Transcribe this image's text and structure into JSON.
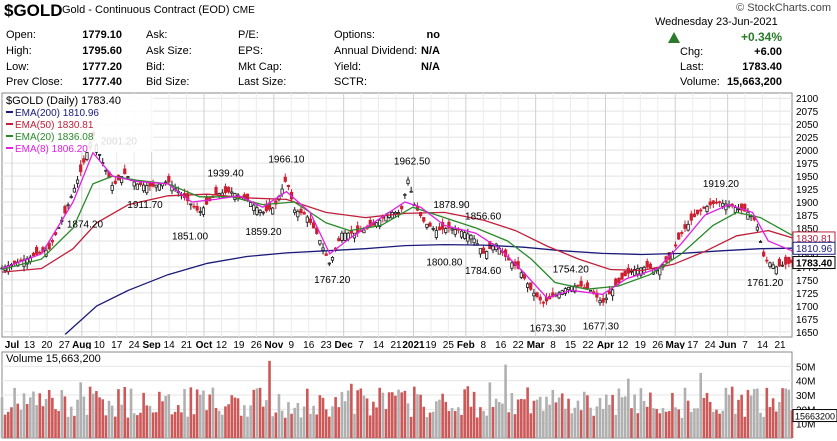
{
  "header": {
    "symbol": "$GOLD",
    "name": "Gold - Continuous Contract (EOD)",
    "exchange": "CME",
    "watermark": "© StockCharts.com",
    "date_text": "Wednesday  23-Jun-2021",
    "change_pct": "+0.34%",
    "chg_label": "Chg:",
    "chg_value": "+6.00",
    "last_label": "Last:",
    "last_value": "1783.40",
    "volume_label": "Volume:",
    "volume_value": "15,663,200",
    "col1": [
      {
        "label": "Open:",
        "value": "1779.10"
      },
      {
        "label": "High:",
        "value": "1795.60"
      },
      {
        "label": "Low:",
        "value": "1777.20"
      },
      {
        "label": "Prev Close:",
        "value": "1777.40"
      }
    ],
    "col2": [
      "Ask:",
      "Ask Size:",
      "Bid:",
      "Bid Size:"
    ],
    "col3": [
      "P/E:",
      "EPS:",
      "Mkt Cap:",
      "Last Size:"
    ],
    "col4": [
      {
        "label": "Options:",
        "value": "no"
      },
      {
        "label": "Annual Dividend:",
        "value": "N/A"
      },
      {
        "label": "Yield:",
        "value": "N/A"
      },
      {
        "label": "SCTR:",
        "value": ""
      }
    ]
  },
  "chart_data": [
    {
      "type": "candlestick",
      "title": "$GOLD (Daily) 1783.40",
      "legend": [
        {
          "name": "EMA(200) 1810.96",
          "color": "#1a1a7a"
        },
        {
          "name": "EMA(50) 1830.81",
          "color": "#c0203a"
        },
        {
          "name": "EMA(20) 1836.08",
          "color": "#2a8a2a"
        },
        {
          "name": "EMA(8) 1806.20",
          "color": "#e020e0"
        }
      ],
      "price_axis": [
        "2100",
        "2075",
        "2050",
        "2025",
        "2000",
        "1975",
        "1950",
        "1925",
        "1900",
        "1875",
        "1850",
        "1825",
        "1800",
        "1775",
        "1750",
        "1725",
        "1700",
        "1675",
        "1650"
      ],
      "ylim": [
        1640,
        2110
      ],
      "x_ticks": [
        "Jul",
        "13",
        "20",
        "27",
        "Aug",
        "10",
        "17",
        "24",
        "Sep",
        "14",
        "21",
        "Oct",
        "12",
        "19",
        "26",
        "Nov",
        "9",
        "16",
        "23",
        "Dec",
        "7",
        "14",
        "21",
        "2021",
        "19",
        "25",
        "Feb",
        "8",
        "16",
        "22",
        "Mar",
        "8",
        "15",
        "22",
        "Apr",
        "12",
        "19",
        "26",
        "May",
        "17",
        "24",
        "Jun",
        "7",
        "14",
        "21"
      ],
      "annotations": [
        {
          "text": "2001.20",
          "x": 0.148,
          "y": 2001.2
        },
        {
          "text": "1874.20",
          "x": 0.105,
          "y": 1874.2
        },
        {
          "text": "1911.70",
          "x": 0.181,
          "y": 1911.7
        },
        {
          "text": "1851.00",
          "x": 0.238,
          "y": 1851.0
        },
        {
          "text": "1939.40",
          "x": 0.283,
          "y": 1939.4
        },
        {
          "text": "1966.10",
          "x": 0.36,
          "y": 1966.1
        },
        {
          "text": "1859.20",
          "x": 0.331,
          "y": 1859.2
        },
        {
          "text": "1767.20",
          "x": 0.418,
          "y": 1767.2
        },
        {
          "text": "1962.50",
          "x": 0.519,
          "y": 1962.5
        },
        {
          "text": "1878.90",
          "x": 0.569,
          "y": 1878.9
        },
        {
          "text": "1856.60",
          "x": 0.609,
          "y": 1856.6
        },
        {
          "text": "1800.80",
          "x": 0.56,
          "y": 1800.8
        },
        {
          "text": "1784.60",
          "x": 0.609,
          "y": 1784.6
        },
        {
          "text": "1754.20",
          "x": 0.72,
          "y": 1754.2
        },
        {
          "text": "1673.30",
          "x": 0.691,
          "y": 1673.3
        },
        {
          "text": "1677.30",
          "x": 0.758,
          "y": 1677.3
        },
        {
          "text": "1919.20",
          "x": 0.91,
          "y": 1919.2
        },
        {
          "text": "1761.20",
          "x": 0.966,
          "y": 1761.2
        }
      ],
      "right_labels": [
        {
          "text": "1830.81",
          "color": "#c0203a",
          "y": 1830.81
        },
        {
          "text": "1810.96",
          "color": "#1a1a7a",
          "y": 1810.96
        },
        {
          "text": "1783.40",
          "color": "#000000",
          "y": 1783.4
        }
      ],
      "close_path": [
        [
          0,
          1773
        ],
        [
          0.03,
          1790
        ],
        [
          0.06,
          1810
        ],
        [
          0.08,
          1880
        ],
        [
          0.1,
          1960
        ],
        [
          0.115,
          2030
        ],
        [
          0.125,
          1985
        ],
        [
          0.14,
          1930
        ],
        [
          0.155,
          1955
        ],
        [
          0.17,
          1935
        ],
        [
          0.19,
          1930
        ],
        [
          0.21,
          1940
        ],
        [
          0.23,
          1910
        ],
        [
          0.25,
          1880
        ],
        [
          0.27,
          1915
        ],
        [
          0.29,
          1920
        ],
        [
          0.31,
          1905
        ],
        [
          0.33,
          1880
        ],
        [
          0.345,
          1890
        ],
        [
          0.36,
          1945
        ],
        [
          0.37,
          1885
        ],
        [
          0.385,
          1875
        ],
        [
          0.4,
          1835
        ],
        [
          0.415,
          1780
        ],
        [
          0.43,
          1840
        ],
        [
          0.45,
          1840
        ],
        [
          0.47,
          1855
        ],
        [
          0.49,
          1880
        ],
        [
          0.505,
          1880
        ],
        [
          0.515,
          1950
        ],
        [
          0.52,
          1900
        ],
        [
          0.535,
          1860
        ],
        [
          0.55,
          1845
        ],
        [
          0.565,
          1850
        ],
        [
          0.58,
          1845
        ],
        [
          0.595,
          1835
        ],
        [
          0.61,
          1800
        ],
        [
          0.625,
          1820
        ],
        [
          0.64,
          1790
        ],
        [
          0.655,
          1770
        ],
        [
          0.67,
          1730
        ],
        [
          0.685,
          1705
        ],
        [
          0.7,
          1720
        ],
        [
          0.715,
          1735
        ],
        [
          0.73,
          1740
        ],
        [
          0.745,
          1730
        ],
        [
          0.76,
          1705
        ],
        [
          0.775,
          1735
        ],
        [
          0.79,
          1760
        ],
        [
          0.8,
          1770
        ],
        [
          0.815,
          1775
        ],
        [
          0.83,
          1770
        ],
        [
          0.845,
          1790
        ],
        [
          0.86,
          1840
        ],
        [
          0.875,
          1870
        ],
        [
          0.89,
          1890
        ],
        [
          0.905,
          1900
        ],
        [
          0.92,
          1895
        ],
        [
          0.935,
          1885
        ],
        [
          0.945,
          1880
        ],
        [
          0.955,
          1860
        ],
        [
          0.965,
          1790
        ],
        [
          0.98,
          1775
        ],
        [
          1,
          1783.4
        ]
      ],
      "ema8": [
        [
          0,
          1772
        ],
        [
          0.05,
          1800
        ],
        [
          0.09,
          1900
        ],
        [
          0.115,
          1995
        ],
        [
          0.14,
          1950
        ],
        [
          0.17,
          1940
        ],
        [
          0.21,
          1935
        ],
        [
          0.24,
          1900
        ],
        [
          0.27,
          1905
        ],
        [
          0.3,
          1912
        ],
        [
          0.33,
          1890
        ],
        [
          0.36,
          1920
        ],
        [
          0.39,
          1880
        ],
        [
          0.415,
          1800
        ],
        [
          0.44,
          1830
        ],
        [
          0.48,
          1870
        ],
        [
          0.51,
          1900
        ],
        [
          0.53,
          1890
        ],
        [
          0.56,
          1855
        ],
        [
          0.6,
          1840
        ],
        [
          0.63,
          1810
        ],
        [
          0.66,
          1765
        ],
        [
          0.69,
          1715
        ],
        [
          0.72,
          1730
        ],
        [
          0.76,
          1722
        ],
        [
          0.79,
          1752
        ],
        [
          0.83,
          1772
        ],
        [
          0.86,
          1820
        ],
        [
          0.89,
          1875
        ],
        [
          0.92,
          1895
        ],
        [
          0.95,
          1880
        ],
        [
          0.97,
          1825
        ],
        [
          1,
          1806
        ]
      ],
      "ema20": [
        [
          0,
          1770
        ],
        [
          0.05,
          1790
        ],
        [
          0.09,
          1850
        ],
        [
          0.115,
          1935
        ],
        [
          0.14,
          1950
        ],
        [
          0.17,
          1942
        ],
        [
          0.21,
          1935
        ],
        [
          0.25,
          1910
        ],
        [
          0.29,
          1910
        ],
        [
          0.33,
          1895
        ],
        [
          0.37,
          1900
        ],
        [
          0.41,
          1860
        ],
        [
          0.44,
          1845
        ],
        [
          0.48,
          1855
        ],
        [
          0.52,
          1890
        ],
        [
          0.56,
          1870
        ],
        [
          0.6,
          1850
        ],
        [
          0.64,
          1825
        ],
        [
          0.67,
          1790
        ],
        [
          0.7,
          1745
        ],
        [
          0.74,
          1732
        ],
        [
          0.78,
          1738
        ],
        [
          0.82,
          1760
        ],
        [
          0.86,
          1800
        ],
        [
          0.9,
          1855
        ],
        [
          0.93,
          1880
        ],
        [
          0.96,
          1870
        ],
        [
          1,
          1836
        ]
      ],
      "ema50": [
        [
          0,
          1765
        ],
        [
          0.05,
          1772
        ],
        [
          0.09,
          1810
        ],
        [
          0.12,
          1860
        ],
        [
          0.16,
          1895
        ],
        [
          0.21,
          1912
        ],
        [
          0.26,
          1915
        ],
        [
          0.31,
          1908
        ],
        [
          0.36,
          1905
        ],
        [
          0.41,
          1880
        ],
        [
          0.46,
          1870
        ],
        [
          0.51,
          1878
        ],
        [
          0.56,
          1880
        ],
        [
          0.61,
          1865
        ],
        [
          0.65,
          1845
        ],
        [
          0.69,
          1815
        ],
        [
          0.73,
          1790
        ],
        [
          0.77,
          1770
        ],
        [
          0.81,
          1768
        ],
        [
          0.85,
          1780
        ],
        [
          0.89,
          1805
        ],
        [
          0.93,
          1835
        ],
        [
          0.97,
          1845
        ],
        [
          1,
          1831
        ]
      ],
      "ema200": [
        [
          0.08,
          1645
        ],
        [
          0.12,
          1700
        ],
        [
          0.16,
          1730
        ],
        [
          0.21,
          1760
        ],
        [
          0.26,
          1782
        ],
        [
          0.31,
          1795
        ],
        [
          0.36,
          1802
        ],
        [
          0.41,
          1806
        ],
        [
          0.46,
          1810
        ],
        [
          0.51,
          1816
        ],
        [
          0.56,
          1818
        ],
        [
          0.61,
          1817
        ],
        [
          0.66,
          1813
        ],
        [
          0.71,
          1806
        ],
        [
          0.76,
          1801
        ],
        [
          0.81,
          1799
        ],
        [
          0.86,
          1801
        ],
        [
          0.91,
          1806
        ],
        [
          0.96,
          1810
        ],
        [
          1,
          1811
        ]
      ]
    },
    {
      "type": "bar",
      "title": "Volume 15,663,200",
      "axis": [
        "50M",
        "40M",
        "30M",
        "20M",
        "10M"
      ],
      "ylim": [
        0,
        60
      ],
      "last_label": "15663200",
      "bar_colors": {
        "up": "#b0b0b0",
        "down": "#cc5858"
      }
    }
  ]
}
